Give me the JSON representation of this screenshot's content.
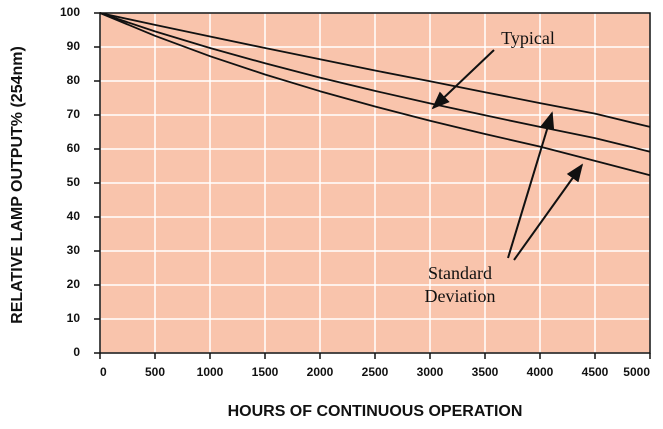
{
  "chart_data": {
    "type": "line",
    "x_label": "HOURS OF CONTINUOUS OPERATION",
    "y_label": "RELATIVE LAMP OUTPUT% (254nm)",
    "x": [
      0,
      500,
      1000,
      1500,
      2000,
      2500,
      3000,
      3500,
      4000,
      4500,
      5000
    ],
    "series": [
      {
        "color": "#111111",
        "values": [
          100,
          96.5,
          93.1,
          89.7,
          86.4,
          83.1,
          79.9,
          76.7,
          73.5,
          70.4,
          66.5
        ]
      },
      {
        "color": "#111111",
        "values": [
          100,
          94.6,
          89.7,
          85.2,
          81,
          77.1,
          73.4,
          69.9,
          66.5,
          63.2,
          59.2
        ]
      },
      {
        "color": "#111111",
        "values": [
          100,
          93.3,
          87.3,
          81.9,
          77,
          72.5,
          68.3,
          64.4,
          60.7,
          56.5,
          52.3
        ]
      }
    ],
    "xlim": [
      0,
      5000
    ],
    "ylim": [
      0,
      100
    ],
    "xticks": [
      0,
      500,
      1000,
      1500,
      2000,
      2500,
      3000,
      3500,
      4000,
      4500,
      5000
    ],
    "yticks": [
      0,
      10,
      20,
      30,
      40,
      50,
      60,
      70,
      80,
      90,
      100
    ],
    "grid": true,
    "plot_background": "#f9c4ac",
    "grid_color": "#ffffff",
    "annotations": [
      "Typical",
      "Standard Deviation"
    ]
  }
}
